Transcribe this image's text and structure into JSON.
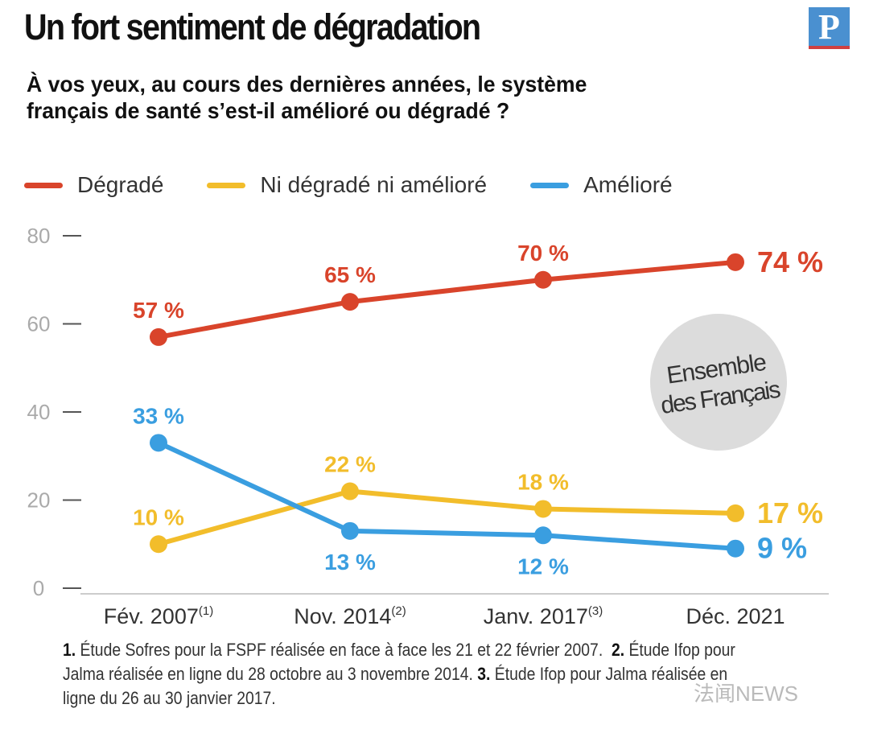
{
  "title": "Un fort sentiment de dégradation",
  "logo": "P",
  "question": "À vos yeux, au cours des dernières années, le système français de santé s’est-il amélioré ou dégradé ?",
  "chart_data": {
    "type": "line",
    "categories": [
      "Fév. 2007",
      "Nov. 2014",
      "Janv. 2017",
      "Déc. 2021"
    ],
    "category_notes": [
      "(1)",
      "(2)",
      "(3)",
      ""
    ],
    "ylim": [
      0,
      80
    ],
    "yticks": [
      0,
      20,
      40,
      60,
      80
    ],
    "legend_position": "top",
    "series": [
      {
        "name": "Dégradé",
        "color": "#d9442b",
        "values": [
          57,
          65,
          70,
          74
        ],
        "labels": [
          "57 %",
          "65 %",
          "70 %",
          "74 %"
        ]
      },
      {
        "name": "Ni dégradé ni amélioré",
        "color": "#f2bd2b",
        "values": [
          10,
          22,
          18,
          17
        ],
        "labels": [
          "10 %",
          "22 %",
          "18 %",
          "17 %"
        ]
      },
      {
        "name": "Amélioré",
        "color": "#3a9ee0",
        "values": [
          33,
          13,
          12,
          9
        ],
        "labels": [
          "33 %",
          "13 %",
          "12 %",
          "9 %"
        ]
      }
    ],
    "annotation": [
      "Ensemble",
      "des Français"
    ]
  },
  "footnotes": [
    {
      "num": "1.",
      "text": "Étude Sofres pour la FSPF réalisée en face à face les 21 et 22 février 2007."
    },
    {
      "num": "2.",
      "text": "Étude Ifop pour Jalma réalisée en ligne du 28 octobre au 3 novembre 2014."
    },
    {
      "num": "3.",
      "text": "Étude Ifop pour Jalma réalisée en ligne du 26 au 30 janvier 2017."
    }
  ],
  "watermark": "法闻NEWS"
}
